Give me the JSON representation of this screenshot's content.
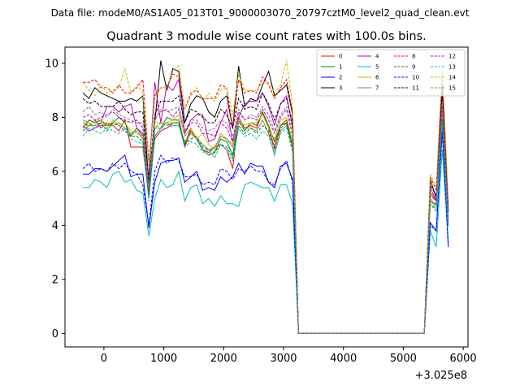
{
  "figure": {
    "suptitle": "Data file: modeM0/AS1A05_013T01_9000003070_20797cztM0_level2_quad_clean.evt"
  },
  "chart_data": {
    "type": "line",
    "title": "Quadrant 3 module wise count rates with 100.0s bins.",
    "xlabel": "",
    "ylabel": "",
    "x_offset_label": "+3.025e8",
    "xlim": [
      -650,
      6080
    ],
    "ylim": [
      -0.5,
      10.6
    ],
    "x_ticks": [
      0,
      1000,
      2000,
      3000,
      4000,
      5000,
      6000
    ],
    "x_tick_labels": [
      "0",
      "1000",
      "2000",
      "3000",
      "4000",
      "5000",
      "6000"
    ],
    "y_ticks": [
      0,
      2,
      4,
      6,
      8,
      10
    ],
    "y_tick_labels": [
      "0",
      "2",
      "4",
      "6",
      "8",
      "10"
    ],
    "grid": false,
    "legend_position": "top-right",
    "legend_columns": 4,
    "x": [
      -350,
      -250,
      -150,
      -50,
      50,
      150,
      250,
      350,
      450,
      550,
      650,
      750,
      850,
      950,
      1050,
      1150,
      1250,
      1350,
      1450,
      1550,
      1650,
      1750,
      1850,
      1950,
      2050,
      2150,
      2250,
      2350,
      2450,
      2550,
      2650,
      2750,
      2850,
      2950,
      3050,
      3150,
      3250,
      5350,
      5450,
      5550,
      5650,
      5750
    ],
    "series": [
      {
        "name": "0",
        "color": "#ff0000",
        "dash": "solid",
        "values": [
          7.8,
          7.7,
          7.9,
          7.6,
          7.8,
          7.7,
          7.5,
          7.9,
          6.9,
          6.9,
          6.9,
          5.1,
          7.2,
          7.5,
          7.6,
          7.8,
          7.8,
          6.9,
          7.5,
          7.2,
          6.8,
          6.7,
          6.9,
          7.0,
          6.8,
          6.1,
          8.0,
          7.6,
          7.7,
          7.6,
          8.2,
          7.6,
          6.9,
          7.7,
          7.9,
          6.9,
          0.0,
          0.0,
          5.2,
          4.9,
          8.5,
          4.1
        ]
      },
      {
        "name": "1",
        "color": "#008000",
        "dash": "solid",
        "values": [
          7.6,
          7.9,
          7.8,
          7.9,
          7.7,
          7.8,
          8.0,
          7.8,
          7.3,
          7.6,
          7.3,
          5.2,
          7.3,
          7.6,
          8.0,
          7.9,
          7.9,
          7.0,
          7.6,
          7.2,
          6.8,
          6.6,
          6.7,
          7.2,
          7.1,
          6.6,
          7.9,
          7.5,
          7.8,
          7.7,
          8.2,
          7.7,
          7.1,
          7.7,
          7.8,
          7.0,
          0.0,
          0.0,
          4.9,
          4.8,
          8.1,
          4.0
        ]
      },
      {
        "name": "2",
        "color": "#0000ff",
        "dash": "solid",
        "values": [
          5.9,
          5.9,
          6.1,
          6.1,
          6.0,
          6.2,
          6.4,
          6.6,
          5.8,
          5.9,
          5.9,
          3.9,
          5.6,
          6.3,
          6.4,
          6.4,
          6.5,
          5.6,
          5.8,
          6.0,
          5.3,
          5.4,
          5.3,
          5.8,
          5.6,
          5.8,
          6.3,
          5.9,
          6.3,
          6.2,
          6.2,
          5.6,
          5.4,
          6.2,
          6.3,
          5.7,
          0.0,
          0.0,
          4.1,
          3.8,
          7.6,
          3.2
        ]
      },
      {
        "name": "3",
        "color": "#000000",
        "dash": "solid",
        "values": [
          8.9,
          8.7,
          9.1,
          8.9,
          8.8,
          8.7,
          8.6,
          8.6,
          8.7,
          8.6,
          8.8,
          5.5,
          7.8,
          10.1,
          9.0,
          9.8,
          9.7,
          7.8,
          8.5,
          8.8,
          8.7,
          8.2,
          8.0,
          8.6,
          8.8,
          7.6,
          9.9,
          8.4,
          8.7,
          8.6,
          9.2,
          9.7,
          8.8,
          9.0,
          9.2,
          8.1,
          0.0,
          0.0,
          5.7,
          5.0,
          9.2,
          4.6
        ]
      },
      {
        "name": "4",
        "color": "#bf00bf",
        "dash": "solid",
        "values": [
          7.7,
          7.5,
          7.6,
          7.8,
          8.4,
          8.4,
          8.2,
          8.4,
          8.5,
          7.6,
          7.4,
          5.8,
          9.3,
          7.8,
          9.2,
          9.0,
          9.4,
          7.4,
          7.9,
          8.1,
          8.1,
          7.1,
          7.2,
          7.8,
          8.3,
          7.1,
          8.0,
          8.5,
          8.6,
          8.6,
          8.9,
          8.4,
          7.7,
          8.5,
          8.8,
          7.6,
          0.0,
          0.0,
          5.4,
          4.9,
          8.9,
          4.5
        ]
      },
      {
        "name": "5",
        "color": "#00bfbf",
        "dash": "solid",
        "values": [
          5.4,
          5.4,
          5.7,
          5.6,
          5.4,
          5.9,
          6.0,
          5.6,
          5.7,
          5.3,
          5.2,
          3.6,
          5.0,
          5.7,
          5.4,
          5.5,
          6.0,
          4.9,
          5.4,
          5.5,
          4.8,
          5.0,
          4.7,
          5.1,
          4.8,
          4.8,
          4.7,
          5.5,
          5.6,
          5.5,
          5.4,
          5.4,
          4.9,
          5.5,
          5.5,
          4.8,
          0.0,
          0.0,
          3.8,
          3.2,
          6.8,
          3.5
        ]
      },
      {
        "name": "6",
        "color": "#bfbf00",
        "dash": "solid",
        "values": [
          7.7,
          7.7,
          7.9,
          7.9,
          7.6,
          7.9,
          7.7,
          7.8,
          7.5,
          7.4,
          7.3,
          5.3,
          7.8,
          7.8,
          7.8,
          7.9,
          8.1,
          7.3,
          7.6,
          7.2,
          7.4,
          7.0,
          6.8,
          7.4,
          7.2,
          7.0,
          7.9,
          7.7,
          7.8,
          7.8,
          8.1,
          7.6,
          7.2,
          7.9,
          8.0,
          7.1,
          0.0,
          0.0,
          5.0,
          4.7,
          8.2,
          4.1
        ]
      },
      {
        "name": "7",
        "color": "#808080",
        "dash": "solid",
        "values": [
          7.9,
          7.8,
          7.6,
          7.7,
          7.7,
          7.7,
          7.8,
          7.6,
          7.4,
          7.5,
          7.2,
          5.4,
          7.6,
          7.6,
          7.8,
          7.7,
          7.7,
          7.1,
          7.4,
          7.2,
          7.0,
          6.8,
          6.9,
          7.3,
          7.2,
          6.9,
          7.8,
          7.6,
          7.6,
          7.5,
          7.9,
          7.4,
          6.6,
          7.5,
          7.7,
          6.9,
          0.0,
          0.0,
          4.9,
          4.7,
          8.0,
          4.0
        ]
      },
      {
        "name": "8",
        "color": "#ff0000",
        "dash": "dashed",
        "values": [
          9.3,
          9.3,
          9.4,
          9.1,
          9.1,
          8.9,
          9.2,
          8.9,
          8.9,
          9.1,
          9.4,
          6.3,
          8.8,
          9.1,
          9.1,
          9.6,
          9.5,
          8.3,
          8.9,
          9.0,
          8.7,
          8.7,
          8.7,
          9.2,
          9.1,
          7.6,
          9.4,
          8.9,
          9.0,
          8.9,
          9.5,
          9.2,
          8.7,
          9.1,
          9.4,
          8.2,
          0.0,
          0.0,
          5.8,
          5.3,
          9.7,
          4.7
        ]
      },
      {
        "name": "9",
        "color": "#008000",
        "dash": "dashed",
        "values": [
          7.5,
          7.7,
          7.7,
          7.8,
          7.5,
          7.8,
          7.7,
          7.5,
          7.3,
          7.3,
          7.1,
          5.0,
          7.6,
          7.8,
          7.7,
          7.8,
          7.8,
          7.0,
          7.2,
          7.3,
          6.9,
          6.8,
          6.7,
          7.0,
          6.9,
          6.5,
          7.7,
          7.4,
          7.6,
          7.4,
          7.7,
          7.5,
          6.8,
          7.6,
          7.8,
          6.8,
          0.0,
          0.0,
          4.8,
          4.6,
          7.9,
          3.9
        ]
      },
      {
        "name": "10",
        "color": "#0000ff",
        "dash": "dashed",
        "values": [
          6.1,
          6.3,
          6.0,
          6.1,
          6.0,
          6.3,
          6.1,
          6.3,
          6.0,
          5.9,
          5.5,
          4.0,
          6.0,
          6.6,
          6.3,
          6.5,
          6.4,
          5.8,
          5.8,
          5.9,
          5.5,
          5.6,
          5.5,
          6.1,
          6.0,
          5.7,
          6.1,
          6.0,
          6.2,
          6.0,
          6.0,
          5.6,
          5.5,
          6.1,
          6.4,
          5.6,
          0.0,
          0.0,
          4.0,
          3.8,
          7.4,
          3.3
        ]
      },
      {
        "name": "11",
        "color": "#000000",
        "dash": "dashed",
        "values": [
          8.7,
          8.5,
          8.6,
          8.4,
          8.4,
          8.4,
          8.6,
          8.3,
          8.1,
          8.2,
          8.2,
          5.6,
          8.1,
          8.6,
          8.6,
          8.6,
          8.8,
          7.8,
          8.3,
          8.2,
          8.0,
          7.8,
          7.8,
          8.3,
          8.1,
          7.6,
          8.7,
          8.3,
          8.4,
          8.3,
          8.9,
          8.5,
          7.9,
          8.5,
          8.7,
          7.8,
          0.0,
          0.0,
          5.5,
          5.1,
          9.0,
          4.5
        ]
      },
      {
        "name": "12",
        "color": "#bf00bf",
        "dash": "dashed",
        "values": [
          8.0,
          8.1,
          7.9,
          8.0,
          8.1,
          8.2,
          8.0,
          7.9,
          7.8,
          7.9,
          7.6,
          5.3,
          8.0,
          8.2,
          8.3,
          8.0,
          8.3,
          7.4,
          7.8,
          7.8,
          7.4,
          7.4,
          7.3,
          7.8,
          7.6,
          7.1,
          8.2,
          7.9,
          8.0,
          7.9,
          8.3,
          7.9,
          7.4,
          8.0,
          8.3,
          7.3,
          0.0,
          0.0,
          5.1,
          4.9,
          8.4,
          4.2
        ]
      },
      {
        "name": "13",
        "color": "#00bfbf",
        "dash": "dashed",
        "values": [
          7.3,
          7.6,
          7.5,
          7.4,
          7.6,
          7.5,
          7.4,
          7.6,
          7.2,
          7.1,
          7.0,
          4.9,
          7.3,
          7.6,
          7.6,
          7.7,
          7.7,
          6.9,
          7.1,
          7.0,
          6.7,
          6.8,
          6.5,
          7.0,
          6.8,
          6.4,
          7.6,
          7.3,
          7.4,
          7.2,
          7.5,
          7.3,
          6.7,
          7.4,
          7.6,
          6.7,
          0.0,
          0.0,
          4.8,
          4.5,
          7.8,
          3.9
        ]
      },
      {
        "name": "14",
        "color": "#bfbf00",
        "dash": "dashed",
        "values": [
          9.3,
          9.0,
          8.8,
          9.2,
          8.9,
          9.0,
          9.1,
          9.8,
          8.9,
          9.2,
          8.9,
          6.2,
          8.7,
          9.1,
          9.1,
          9.7,
          9.9,
          8.3,
          8.8,
          9.1,
          8.6,
          8.9,
          8.6,
          9.0,
          9.1,
          8.1,
          9.6,
          9.0,
          9.0,
          9.0,
          9.3,
          9.3,
          8.9,
          9.2,
          10.1,
          8.4,
          0.0,
          0.0,
          5.9,
          5.4,
          9.8,
          5.0
        ]
      },
      {
        "name": "15",
        "color": "#808080",
        "dash": "dashed",
        "values": [
          8.2,
          8.4,
          8.1,
          8.2,
          8.0,
          8.3,
          8.1,
          8.0,
          7.9,
          7.8,
          7.8,
          5.4,
          7.9,
          8.3,
          8.2,
          8.3,
          8.4,
          7.5,
          7.9,
          7.9,
          7.6,
          7.5,
          7.6,
          7.9,
          7.8,
          7.3,
          8.3,
          7.9,
          8.1,
          8.0,
          8.4,
          8.1,
          7.5,
          8.1,
          8.4,
          7.5,
          0.0,
          0.0,
          5.2,
          5.0,
          8.6,
          4.3
        ]
      }
    ]
  }
}
